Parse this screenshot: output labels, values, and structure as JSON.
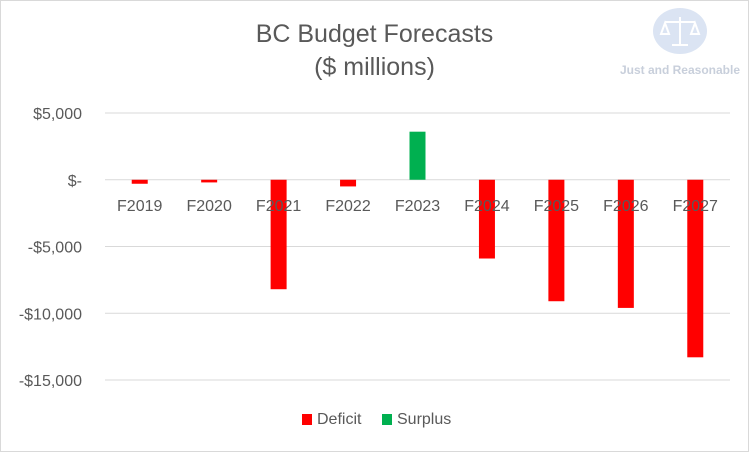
{
  "colors": {
    "deficit": "#ff0000",
    "surplus": "#00b050",
    "text": "#595959",
    "grid": "#d9d9d9"
  },
  "logo": {
    "icon": "scales-of-justice-icon",
    "text": "Just and Reasonable"
  },
  "chart_data": {
    "type": "bar",
    "title": "BC Budget Forecasts",
    "subtitle": "($ millions)",
    "categories": [
      "F2019",
      "F2020",
      "F2021",
      "F2022",
      "F2023",
      "F2024",
      "F2025",
      "F2026",
      "F2027"
    ],
    "series": [
      {
        "name": "Deficit",
        "values": [
          -300,
          -200,
          -8200,
          -500,
          0,
          -5900,
          -9100,
          -9600,
          -13300
        ]
      },
      {
        "name": "Surplus",
        "values": [
          0,
          0,
          0,
          0,
          3600,
          0,
          0,
          0,
          0
        ]
      }
    ],
    "yticks": [
      "$5,000",
      "$-",
      "-$5,000",
      "-$10,000",
      "-$15,000"
    ],
    "ytick_values": [
      5000,
      0,
      -5000,
      -10000,
      -15000
    ],
    "ylim": [
      -15000,
      5000
    ],
    "grid": true,
    "legend_position": "bottom"
  }
}
